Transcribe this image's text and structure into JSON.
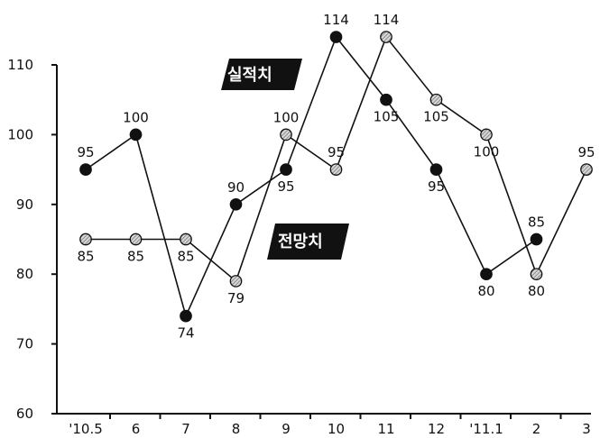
{
  "chart_data": {
    "type": "line",
    "categories": [
      "'10.5",
      "6",
      "7",
      "8",
      "9",
      "10",
      "11",
      "12",
      "'11.1",
      "2",
      "3"
    ],
    "ylim": [
      60,
      115
    ],
    "yticks": [
      60,
      70,
      80,
      90,
      100,
      110
    ],
    "grid": false,
    "series": [
      {
        "name": "실적치",
        "marker": "filled",
        "color": "#111111",
        "values": [
          95,
          100,
          74,
          90,
          95,
          114,
          105,
          95,
          80,
          85,
          null
        ],
        "labels": [
          "95",
          "100",
          "74",
          "90",
          "",
          "114",
          "105",
          "95",
          "80",
          "85",
          ""
        ]
      },
      {
        "name": "전망치",
        "marker": "hatched",
        "color": "#9a9a9a",
        "values": [
          85,
          85,
          85,
          79,
          100,
          95,
          114,
          105,
          100,
          80,
          95
        ],
        "labels": [
          "85",
          "85",
          "85",
          "79",
          "100",
          "95",
          "114",
          "105",
          "100",
          "80",
          "95"
        ]
      }
    ],
    "extra_labels": [
      {
        "category_index": 4,
        "value": 95,
        "text": "95"
      }
    ]
  }
}
